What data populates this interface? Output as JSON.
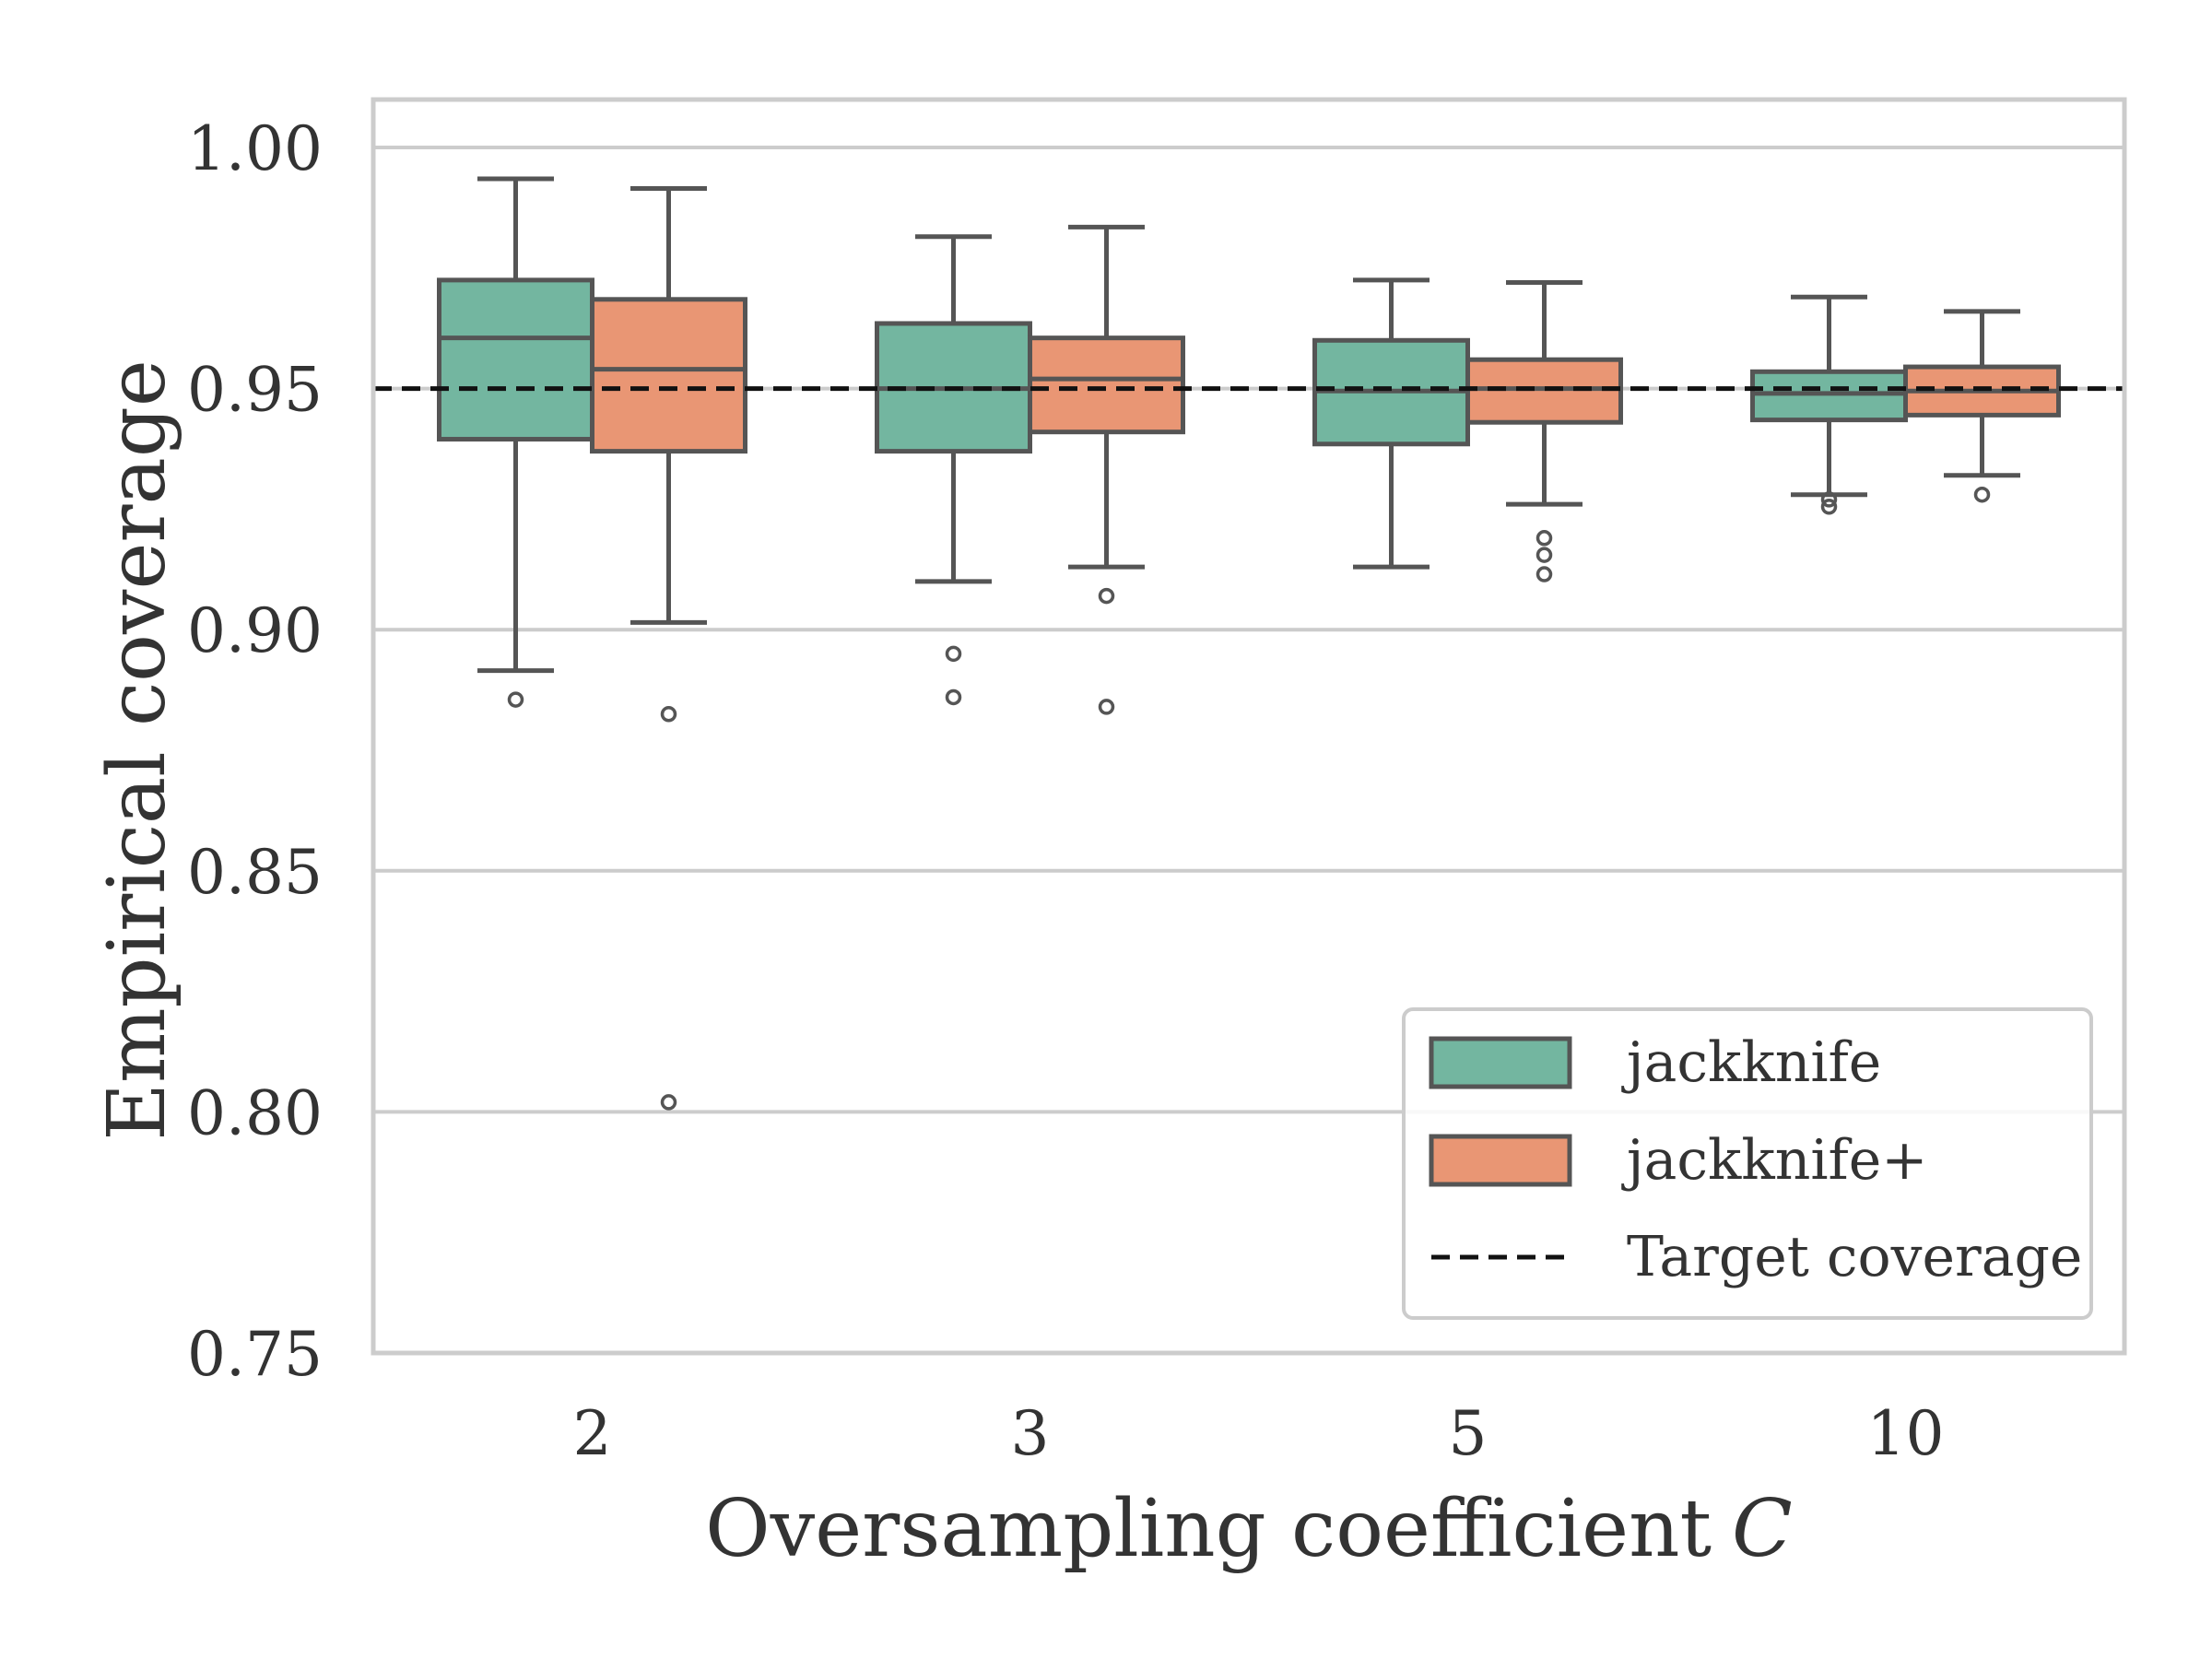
{
  "chart_data": {
    "type": "boxplot",
    "title": "",
    "xlabel": "Oversampling coefficient",
    "xlabel_symbol": "C",
    "ylabel": "Empirical coverage",
    "ylim": [
      0.75,
      1.0
    ],
    "yticks": [
      0.75,
      0.8,
      0.85,
      0.9,
      0.95,
      1.0
    ],
    "ytick_labels": [
      "0.75",
      "0.80",
      "0.85",
      "0.90",
      "0.95",
      "1.00"
    ],
    "grid": "y",
    "categories": [
      "2",
      "3",
      "5",
      "10"
    ],
    "target_coverage": 0.95,
    "legend_position": "lower right",
    "series": [
      {
        "name": "jackknife",
        "color": "#73b6a0",
        "boxes": [
          {
            "whisker_low": 0.8915,
            "q1": 0.9395,
            "median": 0.9605,
            "q3": 0.9725,
            "whisker_high": 0.9935,
            "outliers": [
              0.8855
            ]
          },
          {
            "whisker_low": 0.91,
            "q1": 0.937,
            "median": 0.95,
            "q3": 0.9635,
            "whisker_high": 0.9815,
            "outliers": [
              0.895,
              0.886
            ]
          },
          {
            "whisker_low": 0.913,
            "q1": 0.9385,
            "median": 0.9495,
            "q3": 0.96,
            "whisker_high": 0.9725,
            "outliers": []
          },
          {
            "whisker_low": 0.928,
            "q1": 0.9435,
            "median": 0.949,
            "q3": 0.9535,
            "whisker_high": 0.969,
            "outliers": [
              0.927,
              0.9255
            ]
          }
        ]
      },
      {
        "name": "jackknife+",
        "color": "#e99674",
        "boxes": [
          {
            "whisker_low": 0.9015,
            "q1": 0.937,
            "median": 0.954,
            "q3": 0.9685,
            "whisker_high": 0.9915,
            "outliers": [
              0.8825,
              0.802
            ]
          },
          {
            "whisker_low": 0.913,
            "q1": 0.941,
            "median": 0.952,
            "q3": 0.9605,
            "whisker_high": 0.9835,
            "outliers": [
              0.907,
              0.884
            ]
          },
          {
            "whisker_low": 0.926,
            "q1": 0.943,
            "median": 0.95,
            "q3": 0.956,
            "whisker_high": 0.972,
            "outliers": [
              0.919,
              0.9155,
              0.9115
            ]
          },
          {
            "whisker_low": 0.932,
            "q1": 0.9445,
            "median": 0.9495,
            "q3": 0.9545,
            "whisker_high": 0.966,
            "outliers": [
              0.928
            ]
          }
        ]
      }
    ],
    "legend": [
      {
        "label": "jackknife",
        "kind": "patch",
        "color": "#73b6a0"
      },
      {
        "label": "jackknife+",
        "kind": "patch",
        "color": "#e99674"
      },
      {
        "label": "Target coverage",
        "kind": "dashed-line",
        "color": "#111111"
      }
    ],
    "colors": {
      "box_edge": "#555555",
      "grid": "#cccccc",
      "frame": "#cccccc",
      "target_line": "#111111"
    }
  }
}
